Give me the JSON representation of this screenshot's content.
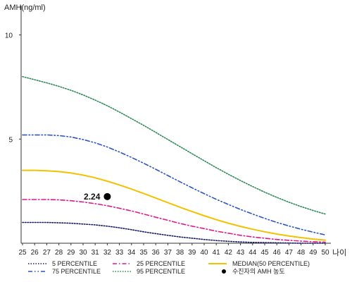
{
  "chart_data": {
    "type": "line",
    "title": "",
    "ylabel": "AMH(ng/ml)",
    "xlabel": "나이",
    "ylim": [
      0,
      11
    ],
    "yticks": [
      5,
      10
    ],
    "x": [
      25,
      26,
      27,
      28,
      29,
      30,
      31,
      32,
      33,
      34,
      35,
      36,
      37,
      38,
      39,
      40,
      41,
      42,
      43,
      44,
      45,
      46,
      47,
      48,
      49,
      50
    ],
    "series": [
      {
        "name": "5 PERCENTILE",
        "color": "#1a1a66",
        "style": "dotted",
        "values": [
          1.0,
          1.0,
          1.0,
          0.98,
          0.96,
          0.92,
          0.88,
          0.82,
          0.74,
          0.65,
          0.55,
          0.46,
          0.38,
          0.3,
          0.24,
          0.18,
          0.13,
          0.09,
          0.06,
          0.04,
          0.03,
          0.02,
          0.01,
          0.0,
          0.0,
          0.0
        ]
      },
      {
        "name": "25 PERCENTILE",
        "color": "#e0188c",
        "style": "dashdot",
        "values": [
          2.1,
          2.1,
          2.1,
          2.08,
          2.04,
          1.98,
          1.9,
          1.8,
          1.68,
          1.55,
          1.4,
          1.25,
          1.1,
          0.95,
          0.82,
          0.7,
          0.58,
          0.48,
          0.38,
          0.3,
          0.24,
          0.18,
          0.14,
          0.1,
          0.07,
          0.05
        ]
      },
      {
        "name": "MEDIAN(50 PERCENTILE)",
        "color": "#f2c200",
        "style": "solid",
        "values": [
          3.5,
          3.5,
          3.48,
          3.44,
          3.37,
          3.27,
          3.14,
          2.98,
          2.8,
          2.6,
          2.39,
          2.17,
          1.95,
          1.73,
          1.52,
          1.32,
          1.13,
          0.96,
          0.81,
          0.67,
          0.55,
          0.44,
          0.35,
          0.27,
          0.2,
          0.15
        ]
      },
      {
        "name": "75 PERCENTILE",
        "color": "#2d55c4",
        "style": "dashdotdot",
        "values": [
          5.2,
          5.2,
          5.2,
          5.17,
          5.1,
          4.98,
          4.82,
          4.62,
          4.38,
          4.12,
          3.84,
          3.55,
          3.25,
          2.95,
          2.66,
          2.38,
          2.11,
          1.86,
          1.62,
          1.4,
          1.19,
          1.0,
          0.83,
          0.67,
          0.53,
          0.4
        ]
      },
      {
        "name": "95 PERCENTILE",
        "color": "#2e8b57",
        "style": "dotted",
        "values": [
          8.0,
          7.85,
          7.7,
          7.53,
          7.34,
          7.12,
          6.87,
          6.6,
          6.3,
          5.98,
          5.66,
          5.32,
          4.98,
          4.64,
          4.3,
          3.96,
          3.63,
          3.31,
          3.01,
          2.72,
          2.45,
          2.2,
          1.97,
          1.76,
          1.57,
          1.4
        ]
      }
    ],
    "marker": {
      "name": "수진자의 AMH 농도",
      "x": 32,
      "y": 2.24,
      "label": "2.24",
      "color": "#000000"
    },
    "legend": {
      "placement": "bottom",
      "items": [
        {
          "label": "5 PERCENTILE",
          "series": "5 PERCENTILE"
        },
        {
          "label": "25 PERCENTILE",
          "series": "25 PERCENTILE"
        },
        {
          "label": "MEDIAN(50 PERCENTILE)",
          "series": "MEDIAN(50 PERCENTILE)"
        },
        {
          "label": "75 PERCENTILE",
          "series": "75 PERCENTILE"
        },
        {
          "label": "95 PERCENTILE",
          "series": "95 PERCENTILE"
        },
        {
          "label": "수진자의 AMH 농도",
          "series": "marker"
        }
      ]
    },
    "grid": false
  }
}
